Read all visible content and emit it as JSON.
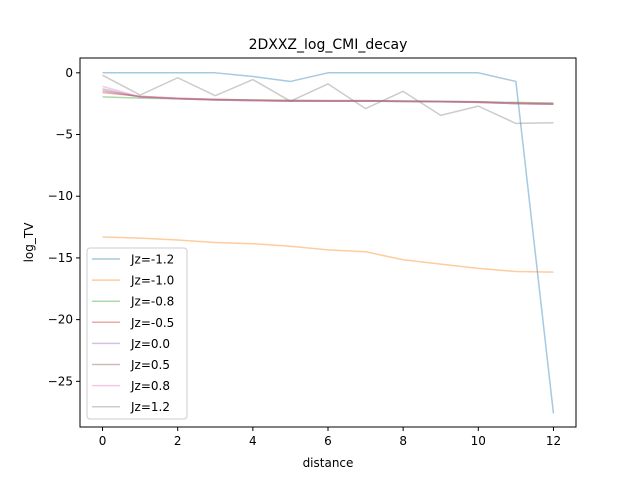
{
  "chart_data": {
    "type": "line",
    "title": "2DXXZ_log_CMI_decay",
    "xlabel": "distance",
    "ylabel": "log_TV",
    "xlim": [
      -0.6,
      12.6
    ],
    "ylim": [
      -28.7,
      1.2
    ],
    "xticks": [
      0,
      2,
      4,
      6,
      8,
      10,
      12
    ],
    "yticks": [
      0,
      -5,
      -10,
      -15,
      -20,
      -25
    ],
    "grid": false,
    "legend_position": "lower-left",
    "line_alpha": 0.4,
    "x": [
      0,
      1,
      2,
      3,
      4,
      5,
      6,
      7,
      8,
      9,
      10,
      11,
      12
    ],
    "series": [
      {
        "name": "Jz=-1.2",
        "color": "#1f77b4",
        "values": [
          0.0,
          0.0,
          0.0,
          0.0,
          -0.3,
          -0.7,
          0.0,
          0.0,
          0.0,
          0.0,
          0.0,
          -0.7,
          -27.6
        ]
      },
      {
        "name": "Jz=-1.0",
        "color": "#ff7f0e",
        "values": [
          -13.3,
          -13.4,
          -13.55,
          -13.75,
          -13.85,
          -14.05,
          -14.35,
          -14.5,
          -15.15,
          -15.5,
          -15.85,
          -16.1,
          -16.15
        ]
      },
      {
        "name": "Jz=-0.8",
        "color": "#2ca02c",
        "values": [
          -1.95,
          -2.05,
          -2.1,
          -2.15,
          -2.2,
          -2.22,
          -2.25,
          -2.25,
          -2.27,
          -2.3,
          -2.35,
          -2.4,
          -2.45
        ]
      },
      {
        "name": "Jz=-0.5",
        "color": "#d62728",
        "values": [
          -1.6,
          -1.9,
          -2.05,
          -2.15,
          -2.2,
          -2.25,
          -2.25,
          -2.25,
          -2.3,
          -2.32,
          -2.35,
          -2.45,
          -2.5
        ]
      },
      {
        "name": "Jz=0.0",
        "color": "#9467bd",
        "values": [
          -1.3,
          -1.95,
          -2.1,
          -2.2,
          -2.25,
          -2.3,
          -2.3,
          -2.3,
          -2.32,
          -2.35,
          -2.4,
          -2.5,
          -2.55
        ]
      },
      {
        "name": "Jz=0.5",
        "color": "#8c564b",
        "values": [
          -1.45,
          -1.95,
          -2.1,
          -2.2,
          -2.25,
          -2.3,
          -2.3,
          -2.3,
          -2.32,
          -2.35,
          -2.4,
          -2.5,
          -2.55
        ]
      },
      {
        "name": "Jz=0.8",
        "color": "#e377c2",
        "values": [
          -1.1,
          -1.95,
          -2.1,
          -2.2,
          -2.25,
          -2.3,
          -2.3,
          -2.3,
          -2.32,
          -2.35,
          -2.4,
          -2.5,
          -2.55
        ]
      },
      {
        "name": "Jz=1.2",
        "color": "#7f7f7f",
        "values": [
          -0.2,
          -1.8,
          -0.4,
          -1.85,
          -0.55,
          -2.3,
          -0.9,
          -2.9,
          -1.5,
          -3.45,
          -2.7,
          -4.1,
          -4.05
        ]
      }
    ]
  }
}
